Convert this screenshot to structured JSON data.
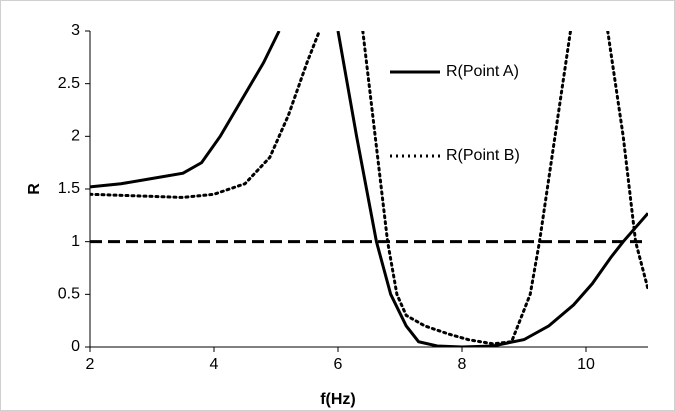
{
  "chart_data": {
    "type": "line",
    "xlabel": "f(Hz)",
    "ylabel": "R",
    "xlim": [
      2,
      11
    ],
    "ylim": [
      0,
      3
    ],
    "xticks": [
      2,
      4,
      6,
      8,
      10
    ],
    "yticks": [
      0,
      0.5,
      1,
      1.5,
      2,
      2.5,
      3
    ],
    "reference_line": {
      "y": 1,
      "color": "#000000"
    },
    "series": [
      {
        "name": "R(Point A)",
        "color": "#000000",
        "style": "solid",
        "x": [
          2,
          2.5,
          3,
          3.5,
          3.8,
          4.1,
          4.4,
          4.8,
          5.05,
          null,
          6.0,
          6.3,
          6.62,
          6.85,
          7.1,
          7.3,
          7.6,
          8,
          8.5,
          9,
          9.4,
          9.8,
          10.1,
          10.4,
          10.6,
          11
        ],
        "values": [
          1.52,
          1.55,
          1.6,
          1.65,
          1.75,
          2.0,
          2.3,
          2.7,
          3.0,
          null,
          3.0,
          2.0,
          1.0,
          0.5,
          0.2,
          0.05,
          0.01,
          0,
          0.01,
          0.07,
          0.2,
          0.4,
          0.6,
          0.85,
          1.0,
          1.27
        ]
      },
      {
        "name": "R(Point B)",
        "color": "#000000",
        "style": "dotted",
        "x": [
          2,
          2.5,
          3,
          3.5,
          4,
          4.5,
          4.9,
          5.2,
          5.5,
          5.7,
          null,
          6.4,
          6.6,
          6.8,
          6.95,
          7.1,
          7.4,
          7.8,
          8.1,
          8.5,
          8.8,
          9.1,
          9.25,
          9.5,
          9.75,
          null,
          10.35,
          10.6,
          10.8,
          11
        ],
        "values": [
          1.45,
          1.44,
          1.43,
          1.42,
          1.45,
          1.55,
          1.8,
          2.2,
          2.7,
          3.0,
          null,
          3.0,
          2.0,
          1.0,
          0.5,
          0.3,
          0.2,
          0.12,
          0.07,
          0.03,
          0.05,
          0.5,
          1.0,
          2.0,
          3.0,
          null,
          3.0,
          2.0,
          1.0,
          0.55
        ]
      }
    ]
  }
}
